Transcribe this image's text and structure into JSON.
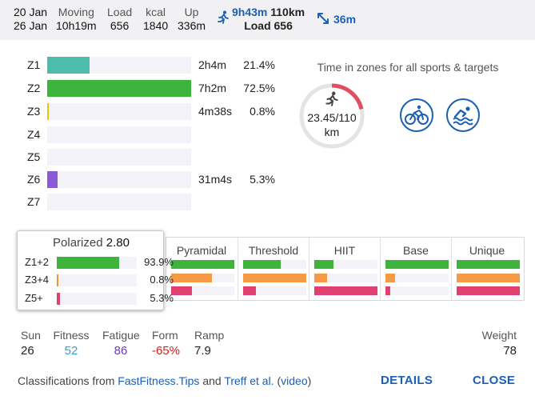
{
  "header": {
    "date_from": "20 Jan",
    "date_to": "26 Jan",
    "moving_label": "Moving",
    "moving_value": "10h19m",
    "load_label": "Load",
    "load_value": "656",
    "kcal_label": "kcal",
    "kcal_value": "1840",
    "up_label": "Up",
    "up_value": "336m",
    "run_time": "9h43m",
    "run_distance": "110km",
    "run_load": "Load 656",
    "distance_icon_value": "36m",
    "run_icon": "run-icon",
    "distance_icon": "arrows-diagonal-icon"
  },
  "zones": [
    {
      "label": "Z1",
      "time": "2h4m",
      "pct": "21.4%",
      "fraction": 0.297,
      "color": "#4dbdab"
    },
    {
      "label": "Z2",
      "time": "7h2m",
      "pct": "72.5%",
      "fraction": 1.0,
      "color": "#3db53d"
    },
    {
      "label": "Z3",
      "time": "4m38s",
      "pct": "0.8%",
      "fraction": 0.012,
      "color": "#f2c300"
    },
    {
      "label": "Z4",
      "time": "",
      "pct": "",
      "fraction": 0,
      "color": "#f0912c"
    },
    {
      "label": "Z5",
      "time": "",
      "pct": "",
      "fraction": 0,
      "color": "#e04060"
    },
    {
      "label": "Z6",
      "time": "31m4s",
      "pct": "5.3%",
      "fraction": 0.073,
      "color": "#8b5ad8"
    },
    {
      "label": "Z7",
      "time": "",
      "pct": "",
      "fraction": 0,
      "color": "#444444"
    }
  ],
  "time_in_zones": {
    "title": "Time in zones for all sports & targets",
    "gauge_value": "23.45/110",
    "gauge_unit": "km",
    "gauge_fraction": 0.213,
    "gauge_color": "#e04f5f",
    "gauge_track": "#e4e4e4",
    "icon": "run-icon",
    "sports": [
      {
        "name": "bike-icon"
      },
      {
        "name": "swim-icon"
      }
    ]
  },
  "polarized": {
    "title": "Polarized",
    "value": "2.80",
    "rows": [
      {
        "label": "Z1+2",
        "pct": "93.9%",
        "fraction": 0.939,
        "color": "#3db53d"
      },
      {
        "label": "Z3+4",
        "pct": "0.8%",
        "fraction": 0.008,
        "color": "#f0912c"
      },
      {
        "label": "Z5+",
        "pct": "5.3%",
        "fraction": 0.053,
        "color": "#e04070"
      }
    ]
  },
  "classifications": [
    {
      "name": "Pyramidal",
      "bars": [
        1.0,
        0.65,
        0.33
      ]
    },
    {
      "name": "Threshold",
      "bars": [
        0.6,
        1.0,
        0.2
      ]
    },
    {
      "name": "HIIT",
      "bars": [
        0.3,
        0.2,
        1.0
      ]
    },
    {
      "name": "Base",
      "bars": [
        1.0,
        0.15,
        0.08
      ]
    },
    {
      "name": "Unique",
      "bars": [
        1.0,
        1.0,
        1.0
      ]
    }
  ],
  "class_colors": [
    "#3db53d",
    "#f59a45",
    "#e04070"
  ],
  "stats": {
    "sun_label": "Sun",
    "sun_value": "26",
    "fitness_label": "Fitness",
    "fitness_value": "52",
    "fitness_color": "#3aa0dc",
    "fatigue_label": "Fatigue",
    "fatigue_value": "86",
    "fatigue_color": "#6a3ab8",
    "form_label": "Form",
    "form_value": "-65%",
    "form_color": "#d02020",
    "ramp_label": "Ramp",
    "ramp_value": "7.9",
    "weight_label": "Weight",
    "weight_value": "78"
  },
  "footer": {
    "prefix": "Classifications from ",
    "link1": "FastFitness.Tips",
    "middle": " and ",
    "link2": "Treff et al.",
    "paren_open": " (",
    "link3": "video",
    "paren_close": ")",
    "details_label": "DETAILS",
    "close_label": "CLOSE"
  }
}
